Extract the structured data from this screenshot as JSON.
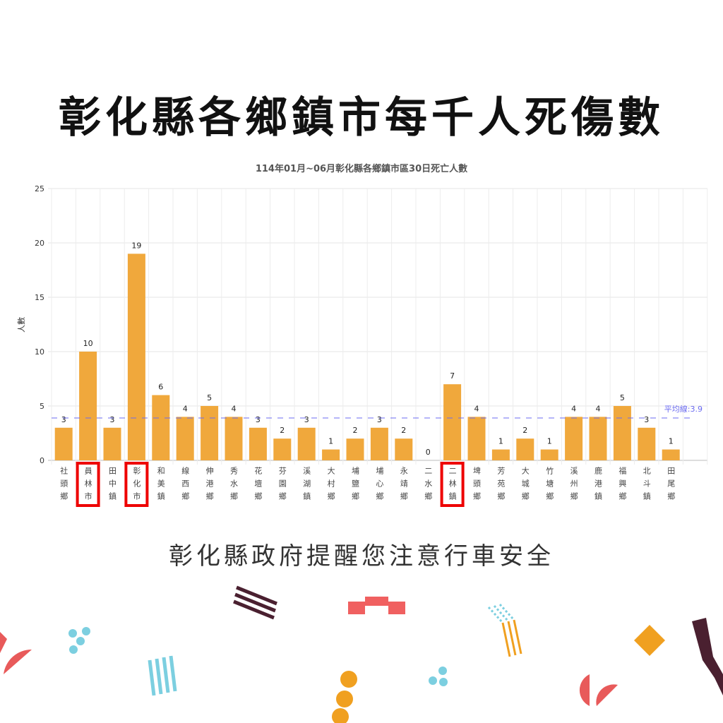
{
  "poster": {
    "title": "彰化縣各鄉鎮市每千人死傷數",
    "footer": "彰化縣政府提醒您注意行車安全"
  },
  "chart_data": {
    "type": "bar",
    "title": "114年01月~06月彰化縣各鄉鎮市區30日死亡人數",
    "xlabel": "",
    "ylabel": "人數",
    "ylim": [
      0,
      25
    ],
    "yticks": [
      0,
      5,
      10,
      15,
      20,
      25
    ],
    "grid": true,
    "categories": [
      "社頭鄉",
      "員林市",
      "田中鎮",
      "彰化市",
      "和美鎮",
      "線西鄉",
      "伸港鄉",
      "秀水鄉",
      "花壇鄉",
      "芬園鄉",
      "溪湖鎮",
      "大村鄉",
      "埔鹽鄉",
      "埔心鄉",
      "永靖鄉",
      "二水鄉",
      "二林鎮",
      "埤頭鄉",
      "芳苑鄉",
      "大城鄉",
      "竹塘鄉",
      "溪州鄉",
      "鹿港鎮",
      "福興鄉",
      "北斗鎮",
      "田尾鄉"
    ],
    "values": [
      3,
      10,
      3,
      19,
      6,
      4,
      5,
      4,
      3,
      2,
      3,
      1,
      2,
      3,
      2,
      0,
      7,
      4,
      1,
      2,
      1,
      4,
      4,
      5,
      3,
      1
    ],
    "average": {
      "label": "平均線:3.9",
      "value": 3.9
    },
    "highlighted": [
      "員林市",
      "彰化市",
      "二林鎮"
    ],
    "colors": {
      "bar": "#f0a83c",
      "average": "#6b6bf0",
      "highlight": "#ee0000"
    }
  }
}
